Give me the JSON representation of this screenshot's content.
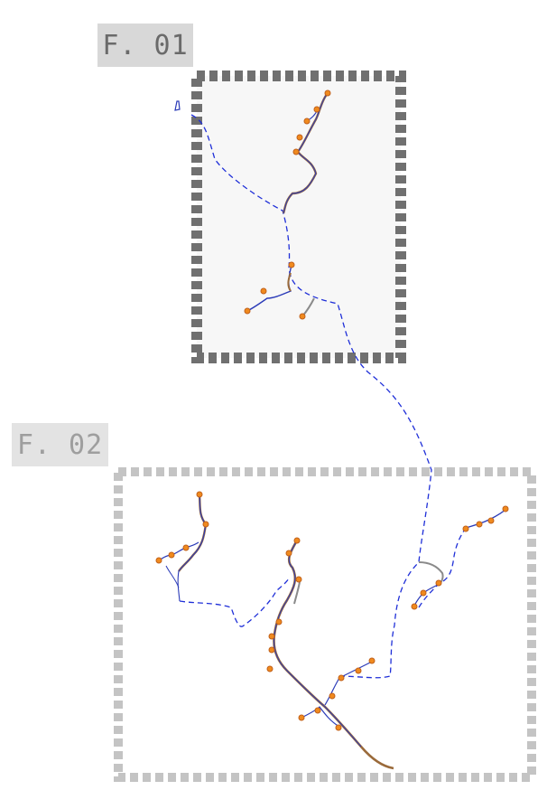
{
  "frames": [
    {
      "id": "f1",
      "label": "F. 01",
      "border_color": "#707070",
      "fill_color": "#f7f7f7"
    },
    {
      "id": "f2",
      "label": "F. 02",
      "border_color": "#c4c4c4",
      "fill_color": "#ffffff"
    }
  ],
  "colors": {
    "connector_dashed": "#1f2fd8",
    "trace_blue": "#2a3ab8",
    "trace_brown": "#9a6a3a",
    "trace_gray": "#8a8a8a",
    "marker_fill": "#f08a1e",
    "marker_stroke": "#c0601a"
  }
}
